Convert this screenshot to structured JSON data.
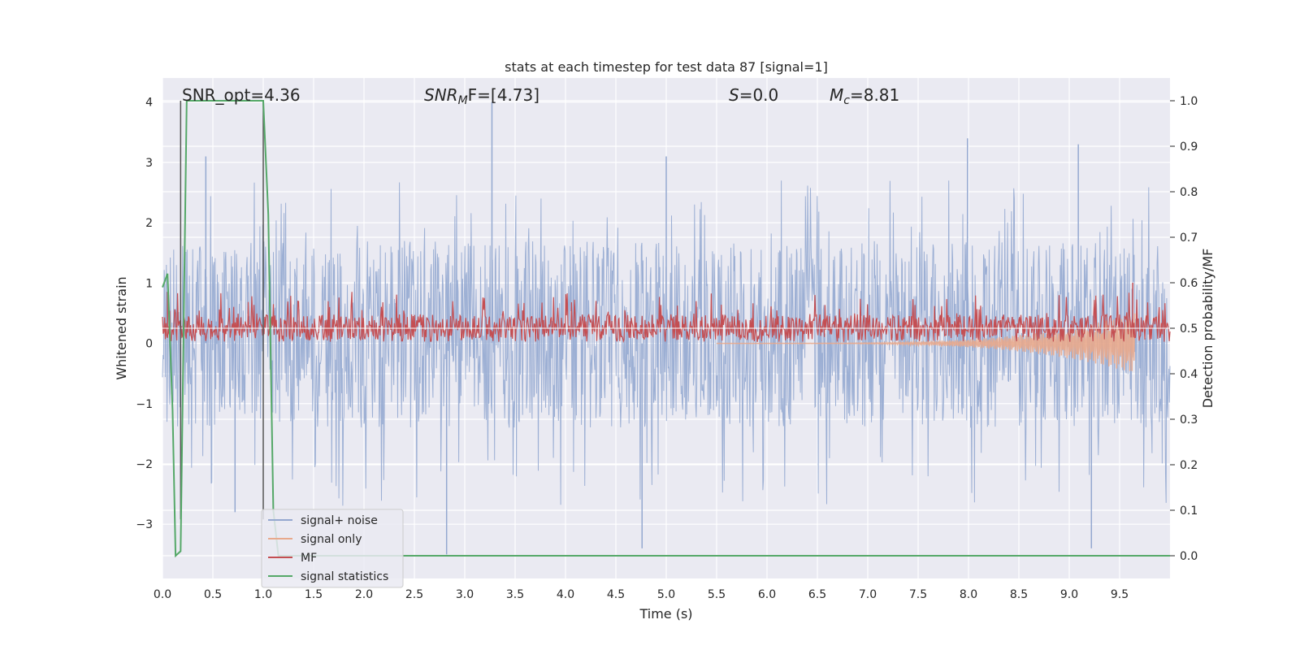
{
  "chart_data": {
    "type": "line",
    "title": "stats at each timestep for test data 87 [signal=1]",
    "xlabel": "Time (s)",
    "ylabel": "Whitened strain",
    "y2label": "Detection probability/MF",
    "xlim": [
      0.0,
      10.0
    ],
    "ylim": [
      -3.9,
      4.4
    ],
    "y2lim": [
      -0.05,
      1.05
    ],
    "xticks": [
      "0.0",
      "0.5",
      "1.0",
      "1.5",
      "2.0",
      "2.5",
      "3.0",
      "3.5",
      "4.0",
      "4.5",
      "5.0",
      "5.5",
      "6.0",
      "6.5",
      "7.0",
      "7.5",
      "8.0",
      "8.5",
      "9.0",
      "9.5"
    ],
    "xtick_values": [
      0.0,
      0.5,
      1.0,
      1.5,
      2.0,
      2.5,
      3.0,
      3.5,
      4.0,
      4.5,
      5.0,
      5.5,
      6.0,
      6.5,
      7.0,
      7.5,
      8.0,
      8.5,
      9.0,
      9.5
    ],
    "yticks": [
      "−3",
      "−2",
      "−1",
      "0",
      "1",
      "2",
      "3",
      "4"
    ],
    "ytick_values": [
      -3,
      -2,
      -1,
      0,
      1,
      2,
      3,
      4
    ],
    "y2ticks": [
      "0.0",
      "0.1",
      "0.2",
      "0.3",
      "0.4",
      "0.5",
      "0.6",
      "0.7",
      "0.8",
      "0.9",
      "1.0"
    ],
    "y2tick_values": [
      0.0,
      0.1,
      0.2,
      0.3,
      0.4,
      0.5,
      0.6,
      0.7,
      0.8,
      0.9,
      1.0
    ],
    "grid": true,
    "legend_position": "lower-left",
    "vlines": [
      0.18,
      1.0
    ],
    "annotations": {
      "snr_opt": "SNR_opt=4.36",
      "snr_mf_name": "SNR",
      "snr_mf_sub": "M",
      "snr_mf_rest": "F=[4.73]",
      "s_name": "S",
      "s_rest": "=0.0",
      "mc_name": "M",
      "mc_sub": "c",
      "mc_rest": "=8.81"
    },
    "series": [
      {
        "name": "signal+ noise",
        "axis": "left",
        "color": "#94a8d0",
        "approx_envelope": {
          "typical_range": [
            -1.4,
            1.7
          ],
          "spikes": [
            [
              0.43,
              3.1
            ],
            [
              3.27,
              4.0
            ],
            [
              5.0,
              3.1
            ],
            [
              7.99,
              3.4
            ],
            [
              9.09,
              3.3
            ],
            [
              2.82,
              -3.5
            ],
            [
              4.76,
              -3.4
            ],
            [
              9.22,
              -3.4
            ],
            [
              0.72,
              -2.8
            ]
          ]
        }
      },
      {
        "name": "signal only",
        "axis": "left",
        "color": "#e8a98c",
        "approx_chirp": {
          "start_time": 5.5,
          "end_time": 9.65,
          "max_amplitude": 0.5
        }
      },
      {
        "name": "MF",
        "axis": "right",
        "color": "#c44e52",
        "approx_baseline": 0.5,
        "approx_range": [
          0.47,
          0.58
        ],
        "spikes": [
          [
            0.05,
            0.58
          ],
          [
            9.63,
            0.6
          ]
        ]
      },
      {
        "name": "signal statistics",
        "axis": "right",
        "color": "#55a868",
        "x": [
          0.0,
          0.05,
          0.1,
          0.13,
          0.18,
          0.24,
          0.28,
          0.95,
          1.0,
          1.05,
          1.1,
          1.15,
          1.5,
          10.0
        ],
        "values": [
          0.59,
          0.62,
          0.32,
          0.0,
          0.01,
          1.0,
          1.0,
          1.0,
          1.0,
          0.75,
          0.1,
          0.0,
          0.0,
          0.0
        ]
      }
    ]
  }
}
